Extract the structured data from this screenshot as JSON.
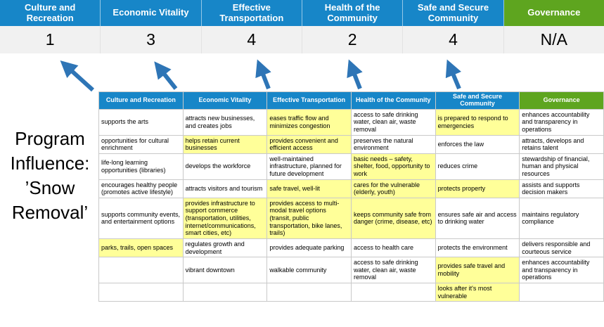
{
  "program_title": "Program Influence: ’Snow Removal’",
  "colors": {
    "header_blue": "#1786c8",
    "header_green": "#5ea51f",
    "highlight_yellow": "#ffff99",
    "score_band_gray": "#f1f1f1",
    "arrow_blue": "#2e75b6",
    "cell_border": "#c9c9c9"
  },
  "categories": [
    {
      "label": "Culture and Recreation",
      "score": "1",
      "color": "blue"
    },
    {
      "label": "Economic Vitality",
      "score": "3",
      "color": "blue"
    },
    {
      "label": "Effective Transportation",
      "score": "4",
      "color": "blue"
    },
    {
      "label": "Health of the Community",
      "score": "2",
      "color": "blue"
    },
    {
      "label": "Safe and Secure Community",
      "score": "4",
      "color": "blue"
    },
    {
      "label": "Governance",
      "score": "N/A",
      "color": "green"
    }
  ],
  "matrix": {
    "rows": [
      [
        {
          "text": "supports the arts",
          "highlight": false
        },
        {
          "text": "attracts new businesses, and creates jobs",
          "highlight": false
        },
        {
          "text": "eases traffic flow and minimizes congestion",
          "highlight": true
        },
        {
          "text": "access to safe drinking water, clean air, waste removal",
          "highlight": false
        },
        {
          "text": "is prepared to respond to emergencies",
          "highlight": true
        },
        {
          "text": "enhances accountability and transparency in operations",
          "highlight": false
        }
      ],
      [
        {
          "text": "opportunities for cultural enrichment",
          "highlight": false
        },
        {
          "text": "helps retain current businesses",
          "highlight": true
        },
        {
          "text": "provides convenient and efficient access",
          "highlight": true
        },
        {
          "text": "preserves the natural environment",
          "highlight": false
        },
        {
          "text": "enforces the law",
          "highlight": false
        },
        {
          "text": "attracts, develops and retains talent",
          "highlight": false
        }
      ],
      [
        {
          "text": "life-long learning opportunities (libraries)",
          "highlight": false
        },
        {
          "text": "develops the workforce",
          "highlight": false
        },
        {
          "text": "well-maintained infrastructure, planned for future development",
          "highlight": false
        },
        {
          "text": "basic needs – safety, shelter, food, opportunity to work",
          "highlight": true
        },
        {
          "text": "reduces crime",
          "highlight": false
        },
        {
          "text": "stewardship of financial, human and physical resources",
          "highlight": false
        }
      ],
      [
        {
          "text": "encourages healthy people (promotes active lifestyle)",
          "highlight": false
        },
        {
          "text": "attracts visitors and tourism",
          "highlight": false
        },
        {
          "text": "safe travel, well-lit",
          "highlight": true
        },
        {
          "text": "cares for the vulnerable (elderly, youth)",
          "highlight": true
        },
        {
          "text": "protects property",
          "highlight": true
        },
        {
          "text": "assists and supports decision makers",
          "highlight": false
        }
      ],
      [
        {
          "text": "supports community events, and entertainment options",
          "highlight": false
        },
        {
          "text": "provides infrastructure to support commerce (transportation, utilities, internet/communications, smart cities, etc)",
          "highlight": true
        },
        {
          "text": "provides access to multi-modal travel options (transit, public transportation, bike lanes, trails)",
          "highlight": true
        },
        {
          "text": "keeps community safe from danger (crime, disease, etc)",
          "highlight": true
        },
        {
          "text": "ensures safe air and access to drinking water",
          "highlight": false
        },
        {
          "text": "maintains regulatory compliance",
          "highlight": false
        }
      ],
      [
        {
          "text": "parks, trails, open spaces",
          "highlight": true
        },
        {
          "text": "regulates growth and development",
          "highlight": false
        },
        {
          "text": "provides adequate parking",
          "highlight": false
        },
        {
          "text": "access to health care",
          "highlight": false
        },
        {
          "text": "protects the environment",
          "highlight": false
        },
        {
          "text": "delivers responsible and courteous service",
          "highlight": false
        }
      ],
      [
        {
          "text": "",
          "highlight": false
        },
        {
          "text": "vibrant downtown",
          "highlight": false
        },
        {
          "text": "walkable community",
          "highlight": false
        },
        {
          "text": "access to safe drinking water, clean air, waste removal",
          "highlight": false
        },
        {
          "text": "provides safe travel and mobility",
          "highlight": true
        },
        {
          "text": "enhances accountability and transparency in operations",
          "highlight": false
        }
      ],
      [
        {
          "text": "",
          "highlight": false
        },
        {
          "text": "",
          "highlight": false
        },
        {
          "text": "",
          "highlight": false
        },
        {
          "text": "",
          "highlight": false
        },
        {
          "text": "looks after it's most vulnerable",
          "highlight": true
        },
        {
          "text": "",
          "highlight": false
        }
      ]
    ]
  }
}
